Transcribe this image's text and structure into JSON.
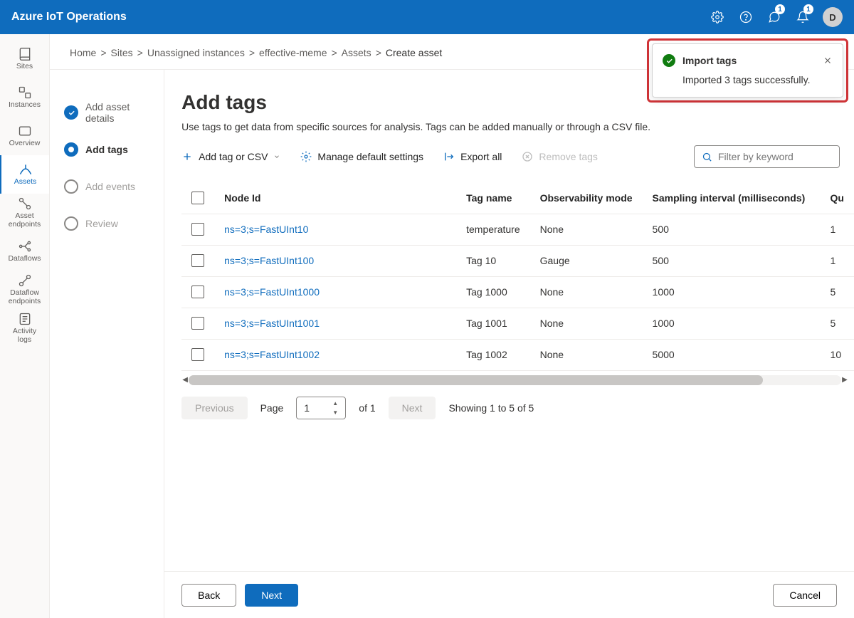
{
  "app_title": "Azure IoT Operations",
  "badges": {
    "bell1": "1",
    "bell2": "1"
  },
  "avatar_initial": "D",
  "leftnav": [
    {
      "key": "sites",
      "label": "Sites"
    },
    {
      "key": "instances",
      "label": "Instances"
    },
    {
      "key": "overview",
      "label": "Overview"
    },
    {
      "key": "assets",
      "label": "Assets",
      "active": true
    },
    {
      "key": "asset-endpoints",
      "label": "Asset\nendpoints"
    },
    {
      "key": "dataflows",
      "label": "Dataflows"
    },
    {
      "key": "dataflow-endpoints",
      "label": "Dataflow\nendpoints"
    },
    {
      "key": "activity-logs",
      "label": "Activity\nlogs"
    }
  ],
  "breadcrumb": {
    "items": [
      "Home",
      "Sites",
      "Unassigned instances",
      "effective-meme",
      "Assets"
    ],
    "current": "Create asset"
  },
  "steps": [
    {
      "label": "Add asset details",
      "state": "done"
    },
    {
      "label": "Add tags",
      "state": "current"
    },
    {
      "label": "Add events",
      "state": "todo"
    },
    {
      "label": "Review",
      "state": "todo"
    }
  ],
  "page": {
    "heading": "Add tags",
    "sub": "Use tags to get data from specific sources for analysis. Tags can be added manually or through a CSV file."
  },
  "toolbar": {
    "add": "Add tag or CSV",
    "manage": "Manage default settings",
    "export": "Export all",
    "remove": "Remove tags",
    "filter_placeholder": "Filter by keyword"
  },
  "table": {
    "columns": [
      "Node Id",
      "Tag name",
      "Observability mode",
      "Sampling interval (milliseconds)",
      "Qu"
    ],
    "rows": [
      {
        "nodeId": "ns=3;s=FastUInt10",
        "tagName": "temperature",
        "mode": "None",
        "interval": "500",
        "q": "1"
      },
      {
        "nodeId": "ns=3;s=FastUInt100",
        "tagName": "Tag 10",
        "mode": "Gauge",
        "interval": "500",
        "q": "1"
      },
      {
        "nodeId": "ns=3;s=FastUInt1000",
        "tagName": "Tag 1000",
        "mode": "None",
        "interval": "1000",
        "q": "5"
      },
      {
        "nodeId": "ns=3;s=FastUInt1001",
        "tagName": "Tag 1001",
        "mode": "None",
        "interval": "1000",
        "q": "5"
      },
      {
        "nodeId": "ns=3;s=FastUInt1002",
        "tagName": "Tag 1002",
        "mode": "None",
        "interval": "5000",
        "q": "10"
      }
    ]
  },
  "pager": {
    "previous": "Previous",
    "next": "Next",
    "page_label": "Page",
    "page_value": "1",
    "of_label": "of 1",
    "showing": "Showing 1 to 5 of 5"
  },
  "footer": {
    "back": "Back",
    "next": "Next",
    "cancel": "Cancel"
  },
  "toast": {
    "title": "Import tags",
    "message": "Imported 3 tags successfully."
  },
  "colors": {
    "brand": "#0f6cbd",
    "success": "#107c10",
    "highlight_border": "#d13438"
  }
}
